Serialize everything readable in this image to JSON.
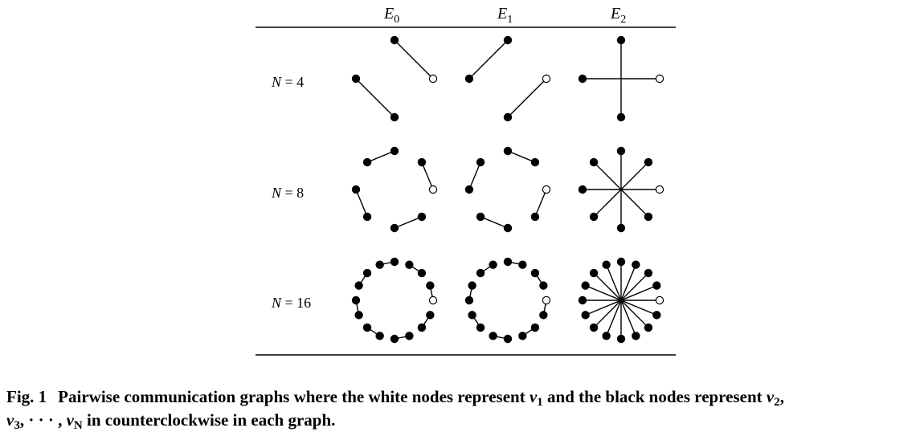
{
  "figure": {
    "columns": [
      {
        "letter": "E",
        "sub": "0",
        "type": "pairs-even"
      },
      {
        "letter": "E",
        "sub": "1",
        "type": "pairs-odd"
      },
      {
        "letter": "E",
        "sub": "2",
        "type": "star"
      }
    ],
    "rows": [
      {
        "label_var": "N",
        "label_rest": " = 4",
        "n": 4
      },
      {
        "label_var": "N",
        "label_rest": " = 8",
        "n": 8
      },
      {
        "label_var": "N",
        "label_rest": " = 16",
        "n": 16
      }
    ],
    "node_colors": {
      "v1": "#ffffff",
      "others": "#000000"
    }
  },
  "caption": {
    "label": "Fig. 1",
    "text_a": "Pairwise communication graphs where the white nodes represent ",
    "v1_var": "v",
    "v1_sub": "1",
    "text_b": " and the black nodes represent ",
    "v2_var": "v",
    "v2_sub": "2",
    "sep1": ", ",
    "v3_var": "v",
    "v3_sub": "3",
    "sep2": ", · · · , ",
    "vn_var": "v",
    "vn_sub": "N",
    "text_c": " in counterclockwise in each graph."
  }
}
